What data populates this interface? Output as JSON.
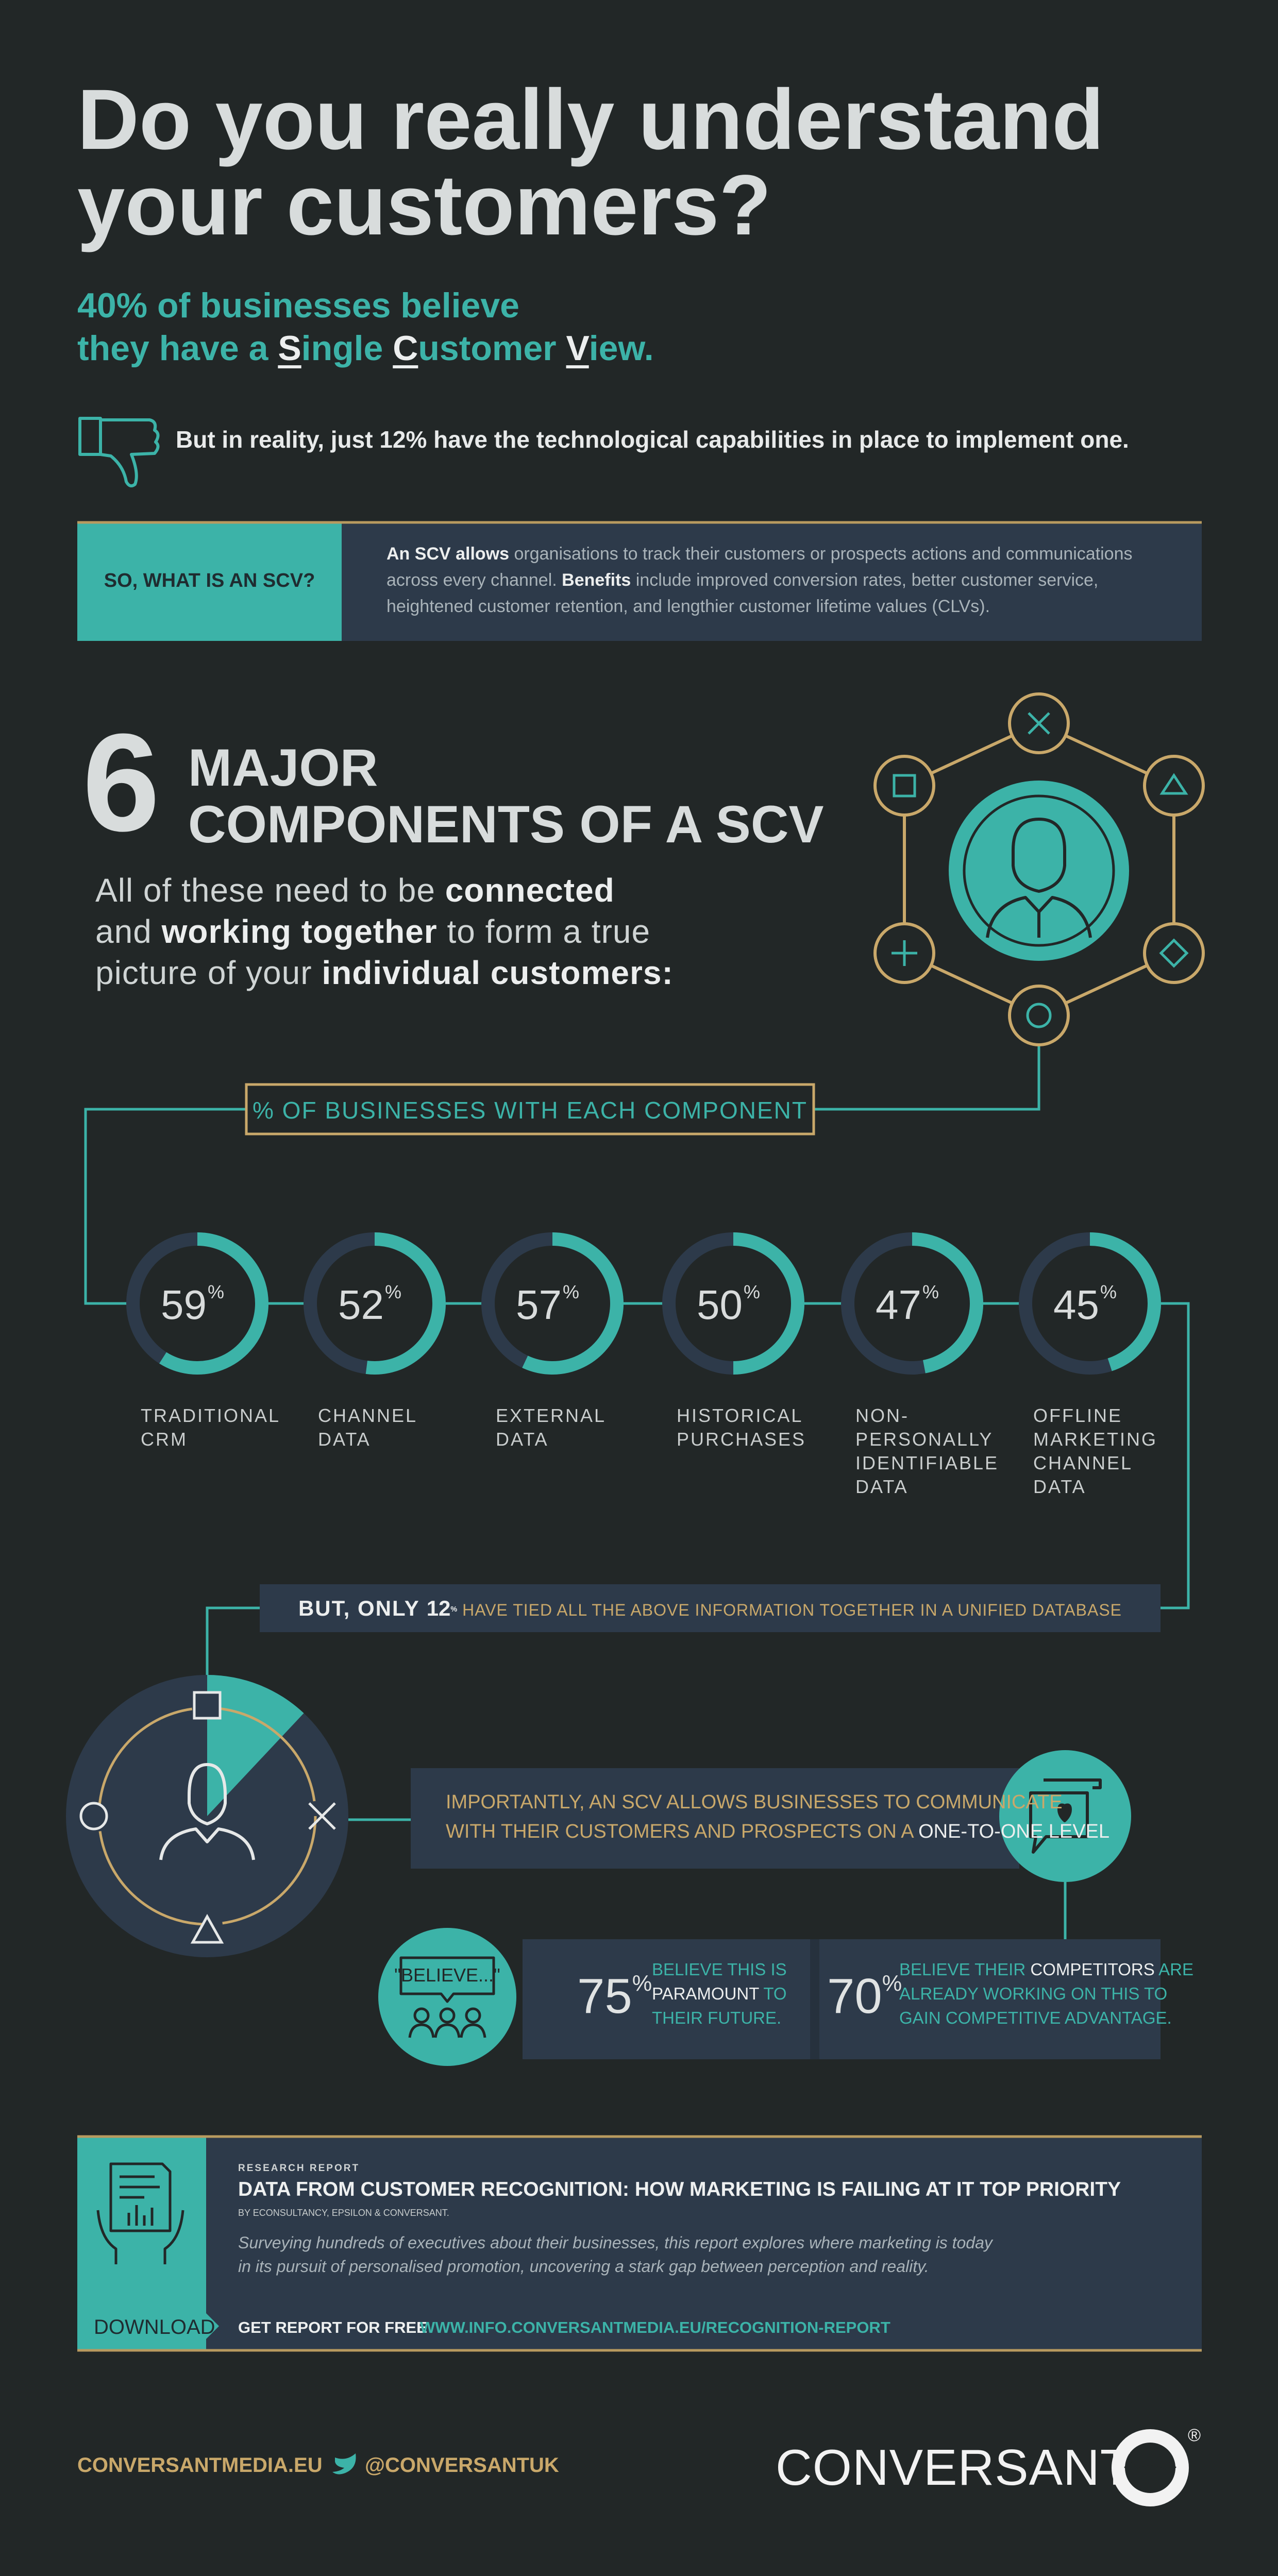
{
  "header": {
    "title_lines": [
      "Do you really understand",
      "your customers?"
    ],
    "subtitle": {
      "line1": "40% of businesses believe",
      "line2": [
        "they have a ",
        "S",
        "ingle ",
        "C",
        "ustomer ",
        "V",
        "iew."
      ]
    },
    "reality": "But in reality, just 12% have the technological capabilities in place to implement one."
  },
  "definition": {
    "label": "SO, WHAT IS AN SCV?",
    "parts": [
      "An SCV allows",
      " organisations to track their customers or prospects actions and communications across every channel. ",
      "Benefits",
      " include improved conversion rates, better customer service, heightened customer retention, and lengthier customer lifetime values (CLVs)."
    ]
  },
  "components_section": {
    "number": "6",
    "heading_lines": [
      "MAJOR",
      "COMPONENTS OF A SCV"
    ],
    "intro": [
      "All of these need to be ",
      "connected",
      "and ",
      "working together",
      " to form a true",
      "picture of your ",
      "individual customers:"
    ],
    "percent_label": "% OF BUSINESSES WITH EACH COMPONENT"
  },
  "components": [
    {
      "value": 59,
      "unit": "%",
      "label_lines": [
        "TRADITIONAL",
        "CRM"
      ]
    },
    {
      "value": 52,
      "unit": "%",
      "label_lines": [
        "CHANNEL",
        "DATA"
      ]
    },
    {
      "value": 57,
      "unit": "%",
      "label_lines": [
        "EXTERNAL",
        "DATA"
      ]
    },
    {
      "value": 50,
      "unit": "%",
      "label_lines": [
        "HISTORICAL",
        "PURCHASES"
      ]
    },
    {
      "value": 47,
      "unit": "%",
      "label_lines": [
        "NON-",
        "PERSONALLY",
        "IDENTIFIABLE",
        "DATA"
      ]
    },
    {
      "value": 45,
      "unit": "%",
      "label_lines": [
        "OFFLINE",
        "MARKETING",
        "CHANNEL",
        "DATA"
      ]
    }
  ],
  "unified": {
    "lead": "BUT, ONLY ",
    "value": 12,
    "unit": "%",
    "text": " HAVE TIED ALL THE ABOVE INFORMATION TOGETHER IN A UNIFIED DATABASE"
  },
  "importantly": {
    "lines": [
      "IMPORTANTLY, AN SCV ALLOWS BUSINESSES TO COMMUNICATE",
      "WITH THEIR CUSTOMERS AND PROSPECTS ON A "
    ],
    "highlight": "ONE-TO-ONE LEVEL"
  },
  "believe_icon": "\"BELIEVE...\"",
  "stats": [
    {
      "value": 75,
      "unit": "%",
      "parts": [
        "BELIEVE THIS IS",
        "PARAMOUNT",
        " TO",
        "THEIR FUTURE."
      ]
    },
    {
      "value": 70,
      "unit": "%",
      "parts": [
        "BELIEVE THEIR ",
        "COMPETITORS",
        " ARE",
        "ALREADY WORKING ON THIS TO",
        "GAIN COMPETITIVE ADVANTAGE."
      ]
    }
  ],
  "report": {
    "kicker": "RESEARCH REPORT",
    "title": "DATA FROM CUSTOMER RECOGNITION: HOW MARKETING IS FAILING AT IT TOP PRIORITY",
    "byline": "BY ECONSULTANCY, EPSILON & CONVERSANT.",
    "description": [
      "Surveying hundreds of executives about their businesses, this report explores where marketing is today",
      "in its pursuit of personalised promotion, uncovering a stark gap between perception and reality."
    ],
    "download": "DOWNLOAD",
    "cta": "GET REPORT FOR FREE",
    "url": "WWW.INFO.CONVERSANTMEDIA.EU/RECOGNITION-REPORT"
  },
  "footer": {
    "site": "CONVERSANTMEDIA.EU",
    "twitter": "@CONVERSANTUK",
    "logo": "CONVERSANT",
    "logo_mark": "®"
  }
}
